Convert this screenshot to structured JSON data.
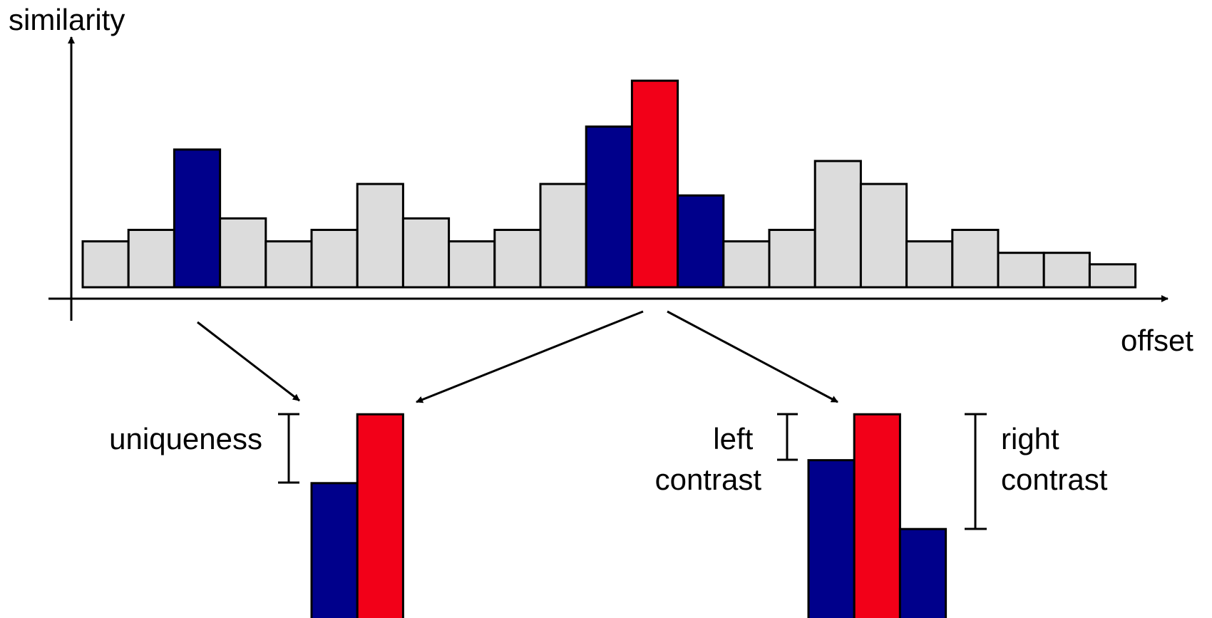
{
  "labels": {
    "y_axis": "similarity",
    "x_axis": "offset",
    "uniqueness": "uniqueness",
    "left_contrast": [
      "left",
      "contrast"
    ],
    "right_contrast": [
      "right",
      "contrast"
    ]
  },
  "colors": {
    "neutral": "#dcdcdc",
    "neighbor": "#00008b",
    "peak": "#f20018",
    "outline": "#000000"
  },
  "chart_data": {
    "type": "bar",
    "xlabel": "offset",
    "ylabel": "similarity",
    "values": [
      2,
      2.5,
      6,
      3,
      2,
      2.5,
      4.5,
      3,
      2,
      2.5,
      4.5,
      7,
      9,
      4,
      2,
      2.5,
      5.5,
      4.5,
      2,
      2.5,
      1.5,
      1.5,
      1
    ],
    "roles": [
      "neutral",
      "neutral",
      "neighbor",
      "neutral",
      "neutral",
      "neutral",
      "neutral",
      "neutral",
      "neutral",
      "neutral",
      "neutral",
      "neighbor",
      "peak",
      "neighbor",
      "neutral",
      "neutral",
      "neutral",
      "neutral",
      "neutral",
      "neutral",
      "neutral",
      "neutral",
      "neutral"
    ],
    "uniqueness_detail": {
      "values": [
        6,
        9
      ],
      "roles": [
        "neighbor",
        "peak"
      ]
    },
    "contrast_detail": {
      "values": [
        7,
        9,
        4
      ],
      "roles": [
        "neighbor",
        "peak",
        "neighbor"
      ]
    }
  }
}
